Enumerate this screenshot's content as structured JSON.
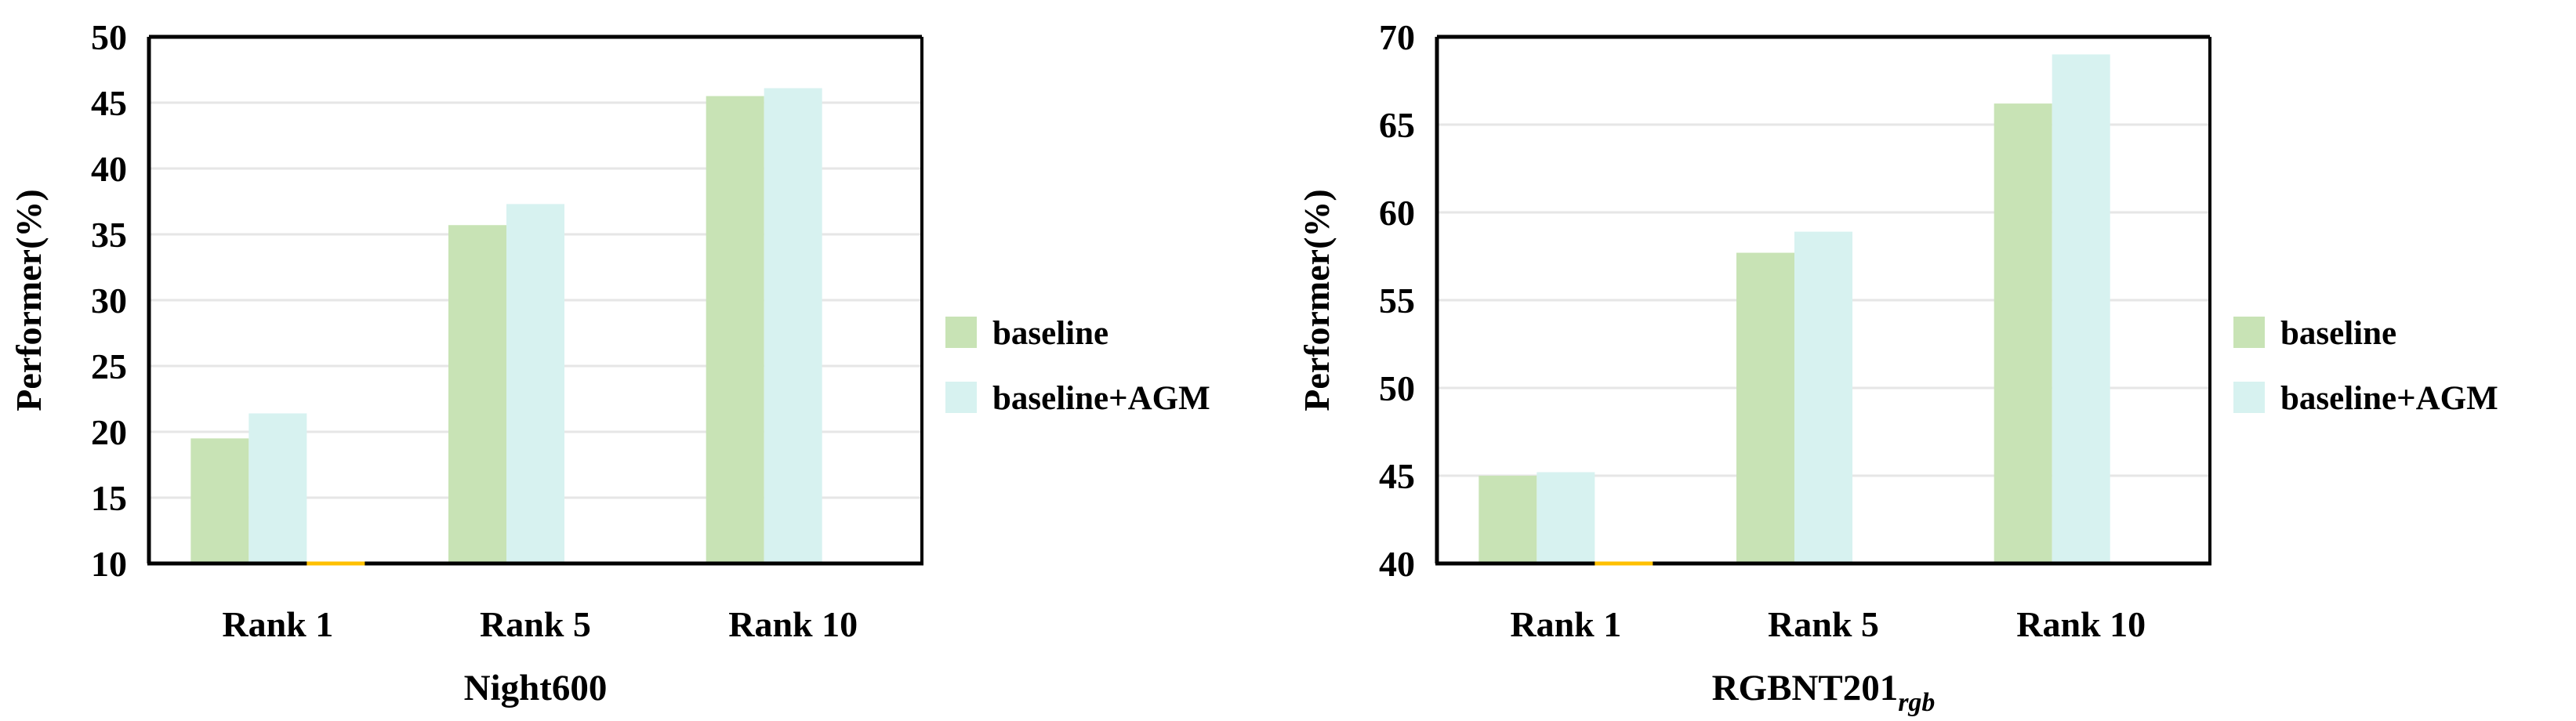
{
  "page": {
    "background": "#ffffff"
  },
  "chart_data": [
    {
      "id": "night600",
      "type": "bar",
      "title": "Night600",
      "title_subscript": "",
      "ylabel": "Performer(%)",
      "categories": [
        "Rank 1",
        "Rank 5",
        "Rank 10"
      ],
      "series": [
        {
          "name": "baseline",
          "color": "#C8E3B5",
          "values": [
            19.5,
            35.7,
            45.5
          ]
        },
        {
          "name": "baseline+AGM",
          "color": "#D7F2F0",
          "values": [
            21.4,
            37.3,
            46.1
          ]
        }
      ],
      "axis_marker": {
        "color": "#FFC000",
        "category_index": 0
      },
      "ylim": [
        10,
        50
      ],
      "yticks": [
        10,
        15,
        20,
        25,
        30,
        35,
        40,
        45,
        50
      ],
      "grid": true,
      "legend_position": "right",
      "legend_labels": [
        "baseline",
        "baseline+AGM"
      ]
    },
    {
      "id": "rgbnt201",
      "type": "bar",
      "title": "RGBNT201",
      "title_subscript": "rgb",
      "ylabel": "Performer(%)",
      "categories": [
        "Rank 1",
        "Rank 5",
        "Rank 10"
      ],
      "series": [
        {
          "name": "baseline",
          "color": "#C8E3B5",
          "values": [
            45.0,
            57.7,
            66.2
          ]
        },
        {
          "name": "baseline+AGM",
          "color": "#D7F2F0",
          "values": [
            45.2,
            58.9,
            69.0
          ]
        }
      ],
      "axis_marker": {
        "color": "#FFC000",
        "category_index": 0
      },
      "ylim": [
        40,
        70
      ],
      "yticks": [
        40,
        45,
        50,
        55,
        60,
        65,
        70
      ],
      "grid": true,
      "legend_position": "right",
      "legend_labels": [
        "baseline",
        "baseline+AGM"
      ]
    }
  ],
  "colors": {
    "axis": "#000000",
    "gridline": "#E6E6E6",
    "bar_green": "#C8E3B5",
    "bar_cyan": "#D7F2F0",
    "marker_orange": "#FFC000",
    "text": "#000000"
  }
}
